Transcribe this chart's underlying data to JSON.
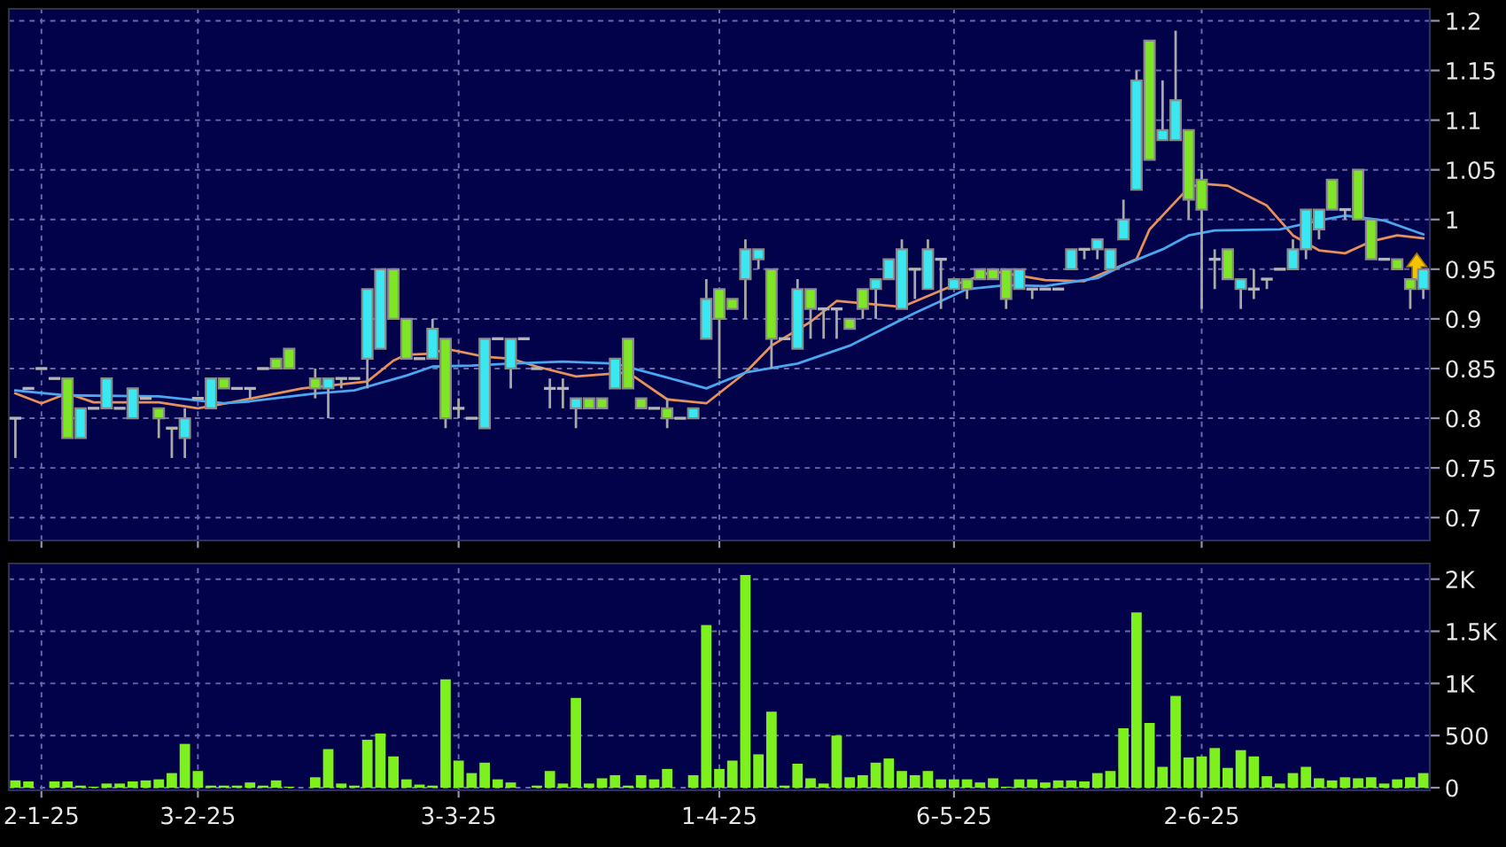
{
  "chart_data": [
    {
      "type": "candlestick",
      "ohlc": [
        [
          0.8,
          0.8,
          0.76,
          0.8
        ],
        [
          0.83,
          0.83,
          0.83,
          0.83
        ],
        [
          0.85,
          0.85,
          0.85,
          0.85
        ],
        [
          0.84,
          0.84,
          0.84,
          0.84
        ],
        [
          0.84,
          0.84,
          0.78,
          0.78
        ],
        [
          0.78,
          0.81,
          0.78,
          0.81
        ],
        [
          0.81,
          0.81,
          0.81,
          0.81
        ],
        [
          0.81,
          0.84,
          0.81,
          0.84
        ],
        [
          0.81,
          0.81,
          0.81,
          0.81
        ],
        [
          0.8,
          0.83,
          0.8,
          0.83
        ],
        [
          0.82,
          0.82,
          0.82,
          0.82
        ],
        [
          0.81,
          0.81,
          0.78,
          0.8
        ],
        [
          0.79,
          0.79,
          0.76,
          0.79
        ],
        [
          0.78,
          0.81,
          0.76,
          0.8
        ],
        [
          0.82,
          0.82,
          0.82,
          0.82
        ],
        [
          0.81,
          0.84,
          0.81,
          0.84
        ],
        [
          0.84,
          0.84,
          0.83,
          0.83
        ],
        [
          0.83,
          0.83,
          0.83,
          0.83
        ],
        [
          0.83,
          0.83,
          0.82,
          0.83
        ],
        [
          0.85,
          0.85,
          0.85,
          0.85
        ],
        [
          0.86,
          0.86,
          0.85,
          0.85
        ],
        [
          0.87,
          0.87,
          0.85,
          0.85
        ],
        null,
        [
          0.84,
          0.85,
          0.82,
          0.83
        ],
        [
          0.83,
          0.84,
          0.8,
          0.84
        ],
        [
          0.84,
          0.84,
          0.83,
          0.84
        ],
        [
          0.84,
          0.84,
          0.84,
          0.84
        ],
        [
          0.86,
          0.93,
          0.83,
          0.93
        ],
        [
          0.87,
          0.95,
          0.87,
          0.95
        ],
        [
          0.95,
          0.95,
          0.9,
          0.9
        ],
        [
          0.9,
          0.9,
          0.86,
          0.86
        ],
        [
          0.86,
          0.86,
          0.86,
          0.86
        ],
        [
          0.86,
          0.9,
          0.86,
          0.89
        ],
        [
          0.88,
          0.88,
          0.79,
          0.8
        ],
        [
          0.81,
          0.82,
          0.8,
          0.81
        ],
        [
          0.8,
          0.8,
          0.8,
          0.8
        ],
        [
          0.79,
          0.88,
          0.79,
          0.88
        ],
        [
          0.88,
          0.88,
          0.88,
          0.88
        ],
        [
          0.85,
          0.88,
          0.83,
          0.88
        ],
        [
          0.88,
          0.88,
          0.88,
          0.88
        ],
        [
          0.85,
          0.85,
          0.85,
          0.85
        ],
        [
          0.83,
          0.84,
          0.81,
          0.83
        ],
        [
          0.83,
          0.84,
          0.81,
          0.83
        ],
        [
          0.81,
          0.82,
          0.79,
          0.82
        ],
        [
          0.82,
          0.82,
          0.81,
          0.81
        ],
        [
          0.82,
          0.82,
          0.81,
          0.81
        ],
        [
          0.83,
          0.86,
          0.83,
          0.86
        ],
        [
          0.88,
          0.88,
          0.83,
          0.83
        ],
        [
          0.82,
          0.82,
          0.81,
          0.81
        ],
        [
          0.81,
          0.81,
          0.81,
          0.81
        ],
        [
          0.81,
          0.82,
          0.79,
          0.8
        ],
        [
          0.8,
          0.8,
          0.8,
          0.8
        ],
        [
          0.8,
          0.81,
          0.8,
          0.81
        ],
        [
          0.88,
          0.94,
          0.88,
          0.92
        ],
        [
          0.93,
          0.93,
          0.84,
          0.9
        ],
        [
          0.92,
          0.92,
          0.91,
          0.91
        ],
        [
          0.94,
          0.98,
          0.9,
          0.97
        ],
        [
          0.96,
          0.97,
          0.95,
          0.97
        ],
        [
          0.95,
          0.95,
          0.85,
          0.88
        ],
        [
          0.88,
          0.88,
          0.88,
          0.88
        ],
        [
          0.87,
          0.94,
          0.87,
          0.93
        ],
        [
          0.93,
          0.93,
          0.88,
          0.91
        ],
        [
          0.91,
          0.91,
          0.88,
          0.91
        ],
        [
          0.91,
          0.91,
          0.88,
          0.91
        ],
        [
          0.9,
          0.9,
          0.89,
          0.89
        ],
        [
          0.93,
          0.93,
          0.9,
          0.91
        ],
        [
          0.93,
          0.94,
          0.9,
          0.94
        ],
        [
          0.94,
          0.96,
          0.94,
          0.96
        ],
        [
          0.91,
          0.98,
          0.91,
          0.97
        ],
        [
          0.95,
          0.95,
          0.92,
          0.95
        ],
        [
          0.93,
          0.98,
          0.93,
          0.97
        ],
        [
          0.96,
          0.96,
          0.91,
          0.96
        ],
        [
          0.93,
          0.94,
          0.93,
          0.94
        ],
        [
          0.94,
          0.94,
          0.92,
          0.93
        ],
        [
          0.95,
          0.95,
          0.94,
          0.94
        ],
        [
          0.95,
          0.95,
          0.94,
          0.94
        ],
        [
          0.95,
          0.95,
          0.91,
          0.92
        ],
        [
          0.93,
          0.95,
          0.93,
          0.95
        ],
        [
          0.93,
          0.93,
          0.92,
          0.93
        ],
        [
          0.93,
          0.93,
          0.93,
          0.93
        ],
        [
          0.93,
          0.93,
          0.93,
          0.93
        ],
        [
          0.95,
          0.97,
          0.95,
          0.97
        ],
        [
          0.97,
          0.97,
          0.96,
          0.97
        ],
        [
          0.97,
          0.98,
          0.96,
          0.98
        ],
        [
          0.95,
          0.97,
          0.95,
          0.97
        ],
        [
          0.98,
          1.02,
          0.98,
          1.0
        ],
        [
          1.03,
          1.15,
          1.03,
          1.14
        ],
        [
          1.18,
          1.18,
          1.06,
          1.06
        ],
        [
          1.08,
          1.14,
          1.08,
          1.09
        ],
        [
          1.08,
          1.19,
          1.08,
          1.12
        ],
        [
          1.09,
          1.09,
          1.0,
          1.02
        ],
        [
          1.04,
          1.05,
          0.91,
          1.01
        ],
        [
          0.96,
          0.97,
          0.93,
          0.96
        ],
        [
          0.97,
          0.97,
          0.94,
          0.94
        ],
        [
          0.93,
          0.94,
          0.91,
          0.94
        ],
        [
          0.93,
          0.95,
          0.92,
          0.93
        ],
        [
          0.94,
          0.94,
          0.93,
          0.94
        ],
        [
          0.95,
          0.95,
          0.95,
          0.95
        ],
        [
          0.95,
          0.98,
          0.95,
          0.97
        ],
        [
          0.97,
          1.01,
          0.96,
          1.01
        ],
        [
          0.99,
          1.01,
          0.98,
          1.01
        ],
        [
          1.04,
          1.04,
          1.01,
          1.01
        ],
        [
          1.01,
          1.01,
          1.0,
          1.01
        ],
        [
          1.05,
          1.05,
          1.0,
          1.0
        ],
        [
          1.0,
          1.0,
          0.96,
          0.96
        ],
        [
          0.96,
          0.96,
          0.96,
          0.96
        ],
        [
          0.96,
          0.96,
          0.95,
          0.95
        ],
        [
          0.94,
          0.94,
          0.91,
          0.93
        ],
        [
          0.93,
          0.95,
          0.92,
          0.95
        ]
      ],
      "colors": [
        "#b4b4b4",
        "#b4b4b4",
        "#b4b4b4",
        "#b4b4b4",
        "#7ee625",
        "#3ae8f2",
        "#b4b4b4",
        "#3ae8f2",
        "#b4b4b4",
        "#3ae8f2",
        "#b4b4b4",
        "#7ee625",
        "#b4b4b4",
        "#3ae8f2",
        "#b4b4b4",
        "#3ae8f2",
        "#7ee625",
        "#b4b4b4",
        "#b4b4b4",
        "#b4b4b4",
        "#7ee625",
        "#7ee625",
        "#b4b4b4",
        "#7ee625",
        "#3ae8f2",
        "#b4b4b4",
        "#b4b4b4",
        "#3ae8f2",
        "#3ae8f2",
        "#7ee625",
        "#7ee625",
        "#b4b4b4",
        "#3ae8f2",
        "#7ee625",
        "#b4b4b4",
        "#b4b4b4",
        "#3ae8f2",
        "#b4b4b4",
        "#3ae8f2",
        "#b4b4b4",
        "#b4b4b4",
        "#b4b4b4",
        "#b4b4b4",
        "#3ae8f2",
        "#7ee625",
        "#7ee625",
        "#3ae8f2",
        "#7ee625",
        "#7ee625",
        "#b4b4b4",
        "#7ee625",
        "#b4b4b4",
        "#3ae8f2",
        "#3ae8f2",
        "#7ee625",
        "#7ee625",
        "#3ae8f2",
        "#3ae8f2",
        "#7ee625",
        "#b4b4b4",
        "#3ae8f2",
        "#7ee625",
        "#b4b4b4",
        "#b4b4b4",
        "#7ee625",
        "#7ee625",
        "#3ae8f2",
        "#3ae8f2",
        "#3ae8f2",
        "#b4b4b4",
        "#3ae8f2",
        "#b4b4b4",
        "#3ae8f2",
        "#7ee625",
        "#7ee625",
        "#7ee625",
        "#7ee625",
        "#3ae8f2",
        "#b4b4b4",
        "#b4b4b4",
        "#b4b4b4",
        "#3ae8f2",
        "#b4b4b4",
        "#3ae8f2",
        "#3ae8f2",
        "#3ae8f2",
        "#3ae8f2",
        "#7ee625",
        "#3ae8f2",
        "#3ae8f2",
        "#7ee625",
        "#7ee625",
        "#b4b4b4",
        "#7ee625",
        "#3ae8f2",
        "#b4b4b4",
        "#b4b4b4",
        "#b4b4b4",
        "#3ae8f2",
        "#3ae8f2",
        "#3ae8f2",
        "#7ee625",
        "#b4b4b4",
        "#7ee625",
        "#7ee625",
        "#b4b4b4",
        "#7ee625",
        "#7ee625",
        "#3ae8f2"
      ],
      "series": [
        {
          "type": "line",
          "color": "#e8905a",
          "values": [
            0.825,
            null,
            0.815,
            null,
            0.825,
            null,
            0.816,
            null,
            null,
            null,
            null,
            0.816,
            null,
            null,
            0.81,
            null,
            null,
            0.817,
            null,
            null,
            null,
            null,
            0.83,
            null,
            null,
            null,
            null,
            0.837,
            null,
            0.858,
            0.864,
            null,
            0.865,
            0.87,
            null,
            null,
            0.862,
            null,
            0.86,
            null,
            0.852,
            null,
            null,
            0.842,
            null,
            null,
            null,
            0.846,
            null,
            null,
            0.819,
            null,
            null,
            0.815,
            null,
            null,
            0.846,
            null,
            0.873,
            null,
            null,
            0.897,
            null,
            0.918,
            null,
            null,
            null,
            null,
            0.912,
            null,
            null,
            null,
            0.934,
            null,
            null,
            0.948,
            null,
            null,
            null,
            0.939,
            null,
            null,
            0.938,
            null,
            null,
            null,
            0.96,
            0.99,
            null,
            null,
            1.032,
            1.036,
            null,
            1.034,
            null,
            null,
            1.014,
            null,
            0.984,
            null,
            0.969,
            null,
            0.966,
            null,
            0.978,
            null,
            0.984,
            null,
            0.981
          ]
        },
        {
          "type": "line",
          "color": "#4aa6ee",
          "values": [
            0.828,
            null,
            null,
            null,
            0.823,
            null,
            null,
            null,
            null,
            null,
            null,
            0.822,
            null,
            null,
            null,
            null,
            0.815,
            null,
            0.817,
            null,
            null,
            null,
            null,
            0.825,
            null,
            null,
            0.828,
            null,
            null,
            null,
            0.843,
            null,
            0.852,
            null,
            null,
            0.853,
            null,
            null,
            0.855,
            null,
            null,
            null,
            0.857,
            null,
            null,
            null,
            0.855,
            null,
            null,
            null,
            0.841,
            null,
            null,
            0.83,
            null,
            null,
            0.846,
            null,
            null,
            null,
            0.855,
            null,
            null,
            null,
            0.873,
            null,
            null,
            null,
            null,
            0.906,
            null,
            null,
            null,
            0.93,
            null,
            null,
            0.934,
            null,
            null,
            0.933,
            null,
            null,
            null,
            0.941,
            null,
            0.954,
            null,
            null,
            0.97,
            null,
            0.984,
            null,
            0.989,
            null,
            null,
            null,
            null,
            0.99,
            null,
            null,
            0.999,
            null,
            1.004,
            null,
            null,
            0.999,
            null,
            null,
            0.985
          ]
        }
      ],
      "ylim": [
        0.677,
        1.212
      ],
      "yticks": [
        0.7,
        0.75,
        0.8,
        0.85,
        0.9,
        0.95,
        1,
        1.05,
        1.1,
        1.15,
        1.2
      ],
      "grid": true
    },
    {
      "type": "bar",
      "categories": [
        null,
        null,
        "2-1-25",
        null,
        null,
        null,
        null,
        null,
        null,
        null,
        null,
        null,
        null,
        null,
        "3-2-25",
        null,
        null,
        null,
        null,
        null,
        null,
        null,
        null,
        null,
        null,
        null,
        null,
        null,
        null,
        null,
        null,
        null,
        null,
        null,
        "3-3-25",
        null,
        null,
        null,
        null,
        null,
        null,
        null,
        null,
        null,
        null,
        null,
        null,
        null,
        null,
        null,
        null,
        null,
        null,
        null,
        "1-4-25",
        null,
        null,
        null,
        null,
        null,
        null,
        null,
        null,
        null,
        null,
        null,
        null,
        null,
        null,
        null,
        null,
        null,
        "6-5-25",
        null,
        null,
        null,
        null,
        null,
        null,
        null,
        null,
        null,
        null,
        null,
        null,
        null,
        null,
        null,
        null,
        null,
        null,
        "2-6-25",
        null,
        null,
        null,
        null,
        null,
        null,
        null,
        null,
        null,
        null,
        null,
        null,
        null,
        null,
        null,
        null,
        null
      ],
      "values": [
        70,
        60,
        0,
        60,
        60,
        20,
        10,
        40,
        40,
        60,
        70,
        80,
        140,
        420,
        160,
        20,
        20,
        20,
        50,
        20,
        70,
        10,
        0,
        100,
        370,
        40,
        20,
        460,
        520,
        300,
        80,
        30,
        20,
        1040,
        260,
        140,
        240,
        80,
        50,
        0,
        20,
        160,
        40,
        860,
        40,
        90,
        120,
        20,
        120,
        80,
        180,
        0,
        120,
        1560,
        180,
        260,
        2040,
        320,
        730,
        20,
        230,
        90,
        40,
        500,
        100,
        120,
        240,
        280,
        160,
        120,
        160,
        80,
        80,
        80,
        50,
        90,
        10,
        80,
        80,
        50,
        70,
        70,
        60,
        140,
        160,
        570,
        1680,
        620,
        200,
        880,
        290,
        300,
        380,
        190,
        360,
        300,
        110,
        40,
        140,
        200,
        90,
        70,
        100,
        90,
        100,
        40,
        80,
        100,
        140
      ],
      "color": "#7ef01e",
      "ylim": [
        -25,
        2150
      ],
      "yticks": [
        0,
        500,
        {
          "value": 1000,
          "label": "1K"
        },
        {
          "value": 1500,
          "label": "1.5K"
        },
        {
          "value": 2000,
          "label": "2K"
        }
      ],
      "grid": true
    }
  ]
}
